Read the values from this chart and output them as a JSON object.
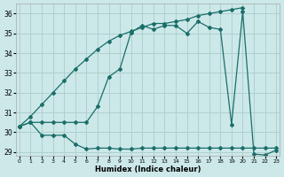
{
  "bg_color": "#cce8e8",
  "grid_color": "#b0d0d0",
  "line_color": "#1a6e6a",
  "xlabel": "Humidex (Indice chaleur)",
  "xlim": [
    0,
    23
  ],
  "ylim": [
    28.8,
    36.5
  ],
  "yticks": [
    29,
    30,
    31,
    32,
    33,
    34,
    35,
    36
  ],
  "xticks": [
    0,
    1,
    2,
    3,
    4,
    5,
    6,
    7,
    8,
    9,
    10,
    11,
    12,
    13,
    14,
    15,
    16,
    17,
    18,
    19,
    20,
    21,
    22,
    23
  ],
  "series1_x": [
    0,
    1,
    2,
    3,
    4,
    5,
    6,
    7,
    8,
    9,
    10,
    11,
    12,
    13,
    14,
    15,
    16,
    17,
    18,
    19,
    20
  ],
  "series1_y": [
    30.3,
    30.8,
    31.4,
    32.0,
    32.6,
    33.2,
    33.7,
    34.2,
    34.6,
    34.9,
    35.1,
    35.3,
    35.5,
    35.5,
    35.6,
    35.7,
    35.9,
    36.0,
    36.1,
    36.2,
    36.3
  ],
  "series2_x": [
    0,
    1,
    2,
    3,
    4,
    5,
    6,
    7,
    8,
    9,
    10,
    11,
    12,
    13,
    14,
    15,
    16,
    17,
    18,
    19,
    20,
    21,
    22,
    23
  ],
  "series2_y": [
    30.3,
    30.5,
    29.85,
    29.85,
    29.85,
    29.4,
    29.15,
    29.2,
    29.2,
    29.15,
    29.15,
    29.2,
    29.2,
    29.2,
    29.2,
    29.2,
    29.2,
    29.2,
    29.2,
    29.2,
    29.2,
    29.2,
    29.2,
    29.2
  ],
  "series3_x": [
    0,
    1,
    2,
    3,
    4,
    5,
    6,
    7,
    8,
    9,
    10,
    11,
    12,
    13,
    14,
    15,
    16,
    17,
    18,
    19,
    20,
    21,
    22,
    23
  ],
  "series3_y": [
    30.3,
    30.5,
    30.5,
    30.5,
    30.5,
    30.5,
    30.5,
    31.3,
    32.8,
    33.2,
    35.05,
    35.4,
    35.2,
    35.4,
    35.4,
    35.0,
    35.6,
    35.3,
    35.2,
    30.4,
    36.1,
    28.9,
    28.85,
    29.1
  ]
}
